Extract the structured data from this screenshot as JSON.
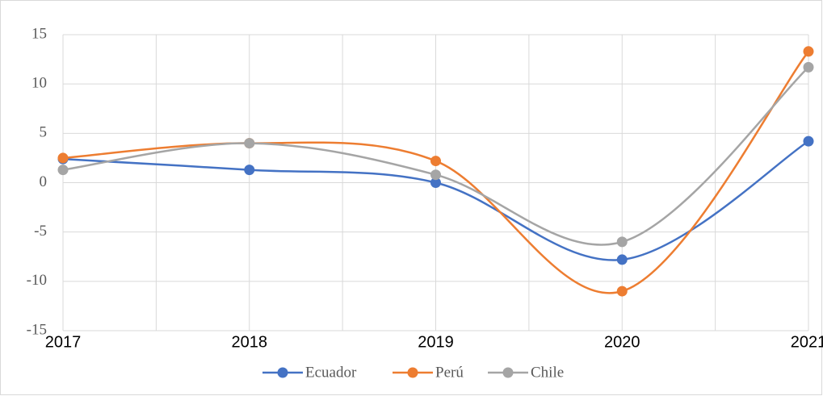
{
  "chart_data": {
    "type": "line",
    "categories": [
      "2017",
      "2018",
      "2019",
      "2020",
      "2021"
    ],
    "series": [
      {
        "name": "Ecuador",
        "color": "#4472c4",
        "values": [
          2.4,
          1.3,
          0.0,
          -7.8,
          4.2
        ]
      },
      {
        "name": "Perú",
        "color": "#ed7d31",
        "values": [
          2.5,
          4.0,
          2.2,
          -11.0,
          13.3
        ]
      },
      {
        "name": "Chile",
        "color": "#a5a5a5",
        "values": [
          1.3,
          4.0,
          0.8,
          -6.0,
          11.7
        ]
      }
    ],
    "ylim": [
      -15,
      15
    ],
    "yticks": [
      -15,
      -10,
      -5,
      0,
      5,
      10,
      15
    ],
    "grid": true,
    "smooth": true,
    "legend": "bottom"
  }
}
